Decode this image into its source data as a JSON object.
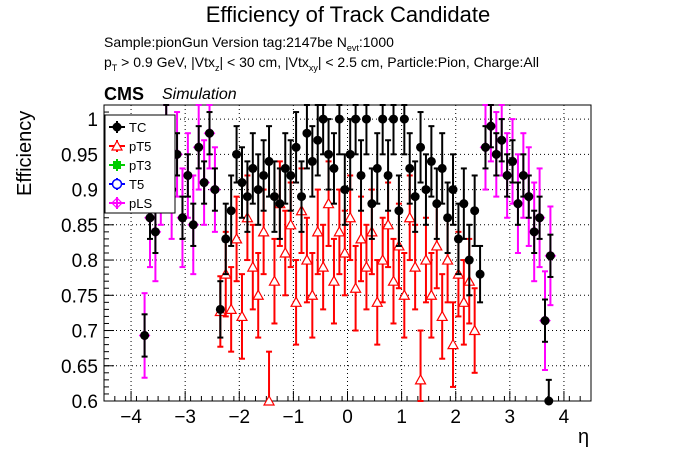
{
  "header": {
    "title": "Efficiency of Track Candidate",
    "sample_prefix": "Sample:pionGun   Version tag:2147be  N",
    "sample_sub": "evt",
    "sample_suffix": ":1000",
    "cuts_p": "p",
    "cuts_p_sub": "T",
    "cuts_1": " > 0.9 GeV, |Vtx",
    "cuts_z_sub": "z",
    "cuts_2": "| < 30 cm, |Vtx",
    "cuts_xy_sub": "xy",
    "cuts_3": "| < 2.5 cm, Particle:Pion, Charge:All",
    "cms": "CMS",
    "simulation": "Simulation"
  },
  "colors": {
    "TC": "#000000",
    "pT5": "#ff0000",
    "pT3": "#00cc00",
    "T5": "#0000ff",
    "pLS": "#ff00ff"
  },
  "chart_data": {
    "type": "scatter",
    "xlabel": "η",
    "ylabel": "Efficiency",
    "xlim": [
      -4.5,
      4.5
    ],
    "ylim": [
      0.6,
      1.02
    ],
    "xticks": [
      -4,
      -3,
      -2,
      -1,
      0,
      1,
      2,
      3,
      4
    ],
    "yticks": [
      0.6,
      0.65,
      0.7,
      0.75,
      0.8,
      0.85,
      0.9,
      0.95,
      1
    ],
    "grid": true,
    "legend_position": "top-left",
    "legend": [
      "TC",
      "pT5",
      "pT3",
      "T5",
      "pLS"
    ],
    "series": [
      {
        "name": "TC",
        "points": [
          [
            -3.75,
            0.693,
            0.03
          ],
          [
            -3.65,
            0.86,
            0.03
          ],
          [
            -3.55,
            0.84,
            0.03
          ],
          [
            -3.45,
            0.91,
            0.03
          ],
          [
            -3.35,
            1.0,
            0.03
          ],
          [
            -3.25,
            0.9,
            0.03
          ],
          [
            -3.15,
            0.95,
            0.03
          ],
          [
            -3.05,
            0.86,
            0.03
          ],
          [
            -2.95,
            0.92,
            0.03
          ],
          [
            -2.85,
            0.85,
            0.03
          ],
          [
            -2.75,
            0.96,
            0.03
          ],
          [
            -2.65,
            0.91,
            0.03
          ],
          [
            -2.55,
            0.98,
            0.03
          ],
          [
            -2.45,
            0.9,
            0.03
          ],
          [
            -2.35,
            0.73,
            0.04
          ],
          [
            -2.25,
            0.83,
            0.05
          ],
          [
            -2.15,
            0.87,
            0.05
          ],
          [
            -2.05,
            0.95,
            0.04
          ],
          [
            -1.95,
            0.91,
            0.05
          ],
          [
            -1.85,
            0.89,
            0.05
          ],
          [
            -1.75,
            0.93,
            0.05
          ],
          [
            -1.65,
            0.9,
            0.05
          ],
          [
            -1.55,
            0.92,
            0.05
          ],
          [
            -1.45,
            0.94,
            0.05
          ],
          [
            -1.35,
            0.89,
            0.05
          ],
          [
            -1.25,
            0.88,
            0.05
          ],
          [
            -1.15,
            0.93,
            0.05
          ],
          [
            -1.05,
            0.92,
            0.05
          ],
          [
            -0.95,
            0.96,
            0.05
          ],
          [
            -0.85,
            0.89,
            0.05
          ],
          [
            -0.75,
            0.98,
            0.05
          ],
          [
            -0.65,
            0.94,
            0.05
          ],
          [
            -0.55,
            0.97,
            0.05
          ],
          [
            -0.45,
            1.0,
            0.05
          ],
          [
            -0.35,
            0.95,
            0.05
          ],
          [
            -0.25,
            0.93,
            0.05
          ],
          [
            -0.15,
            1.0,
            0.05
          ],
          [
            -0.05,
            0.9,
            0.05
          ],
          [
            0.05,
            0.95,
            0.05
          ],
          [
            0.15,
            1.0,
            0.05
          ],
          [
            0.25,
            0.92,
            0.05
          ],
          [
            0.35,
            1.0,
            0.05
          ],
          [
            0.45,
            0.88,
            0.05
          ],
          [
            0.55,
            0.93,
            0.05
          ],
          [
            0.65,
            1.0,
            0.05
          ],
          [
            0.75,
            0.92,
            0.05
          ],
          [
            0.85,
            1.0,
            0.05
          ],
          [
            0.95,
            0.87,
            0.05
          ],
          [
            1.05,
            1.0,
            0.05
          ],
          [
            1.15,
            0.93,
            0.05
          ],
          [
            1.25,
            0.89,
            0.05
          ],
          [
            1.35,
            0.96,
            0.05
          ],
          [
            1.45,
            0.9,
            0.05
          ],
          [
            1.55,
            0.94,
            0.05
          ],
          [
            1.65,
            0.88,
            0.05
          ],
          [
            1.75,
            0.93,
            0.05
          ],
          [
            1.85,
            0.86,
            0.05
          ],
          [
            1.95,
            0.9,
            0.05
          ],
          [
            2.05,
            0.83,
            0.05
          ],
          [
            2.15,
            0.88,
            0.05
          ],
          [
            2.25,
            0.8,
            0.05
          ],
          [
            2.35,
            0.87,
            0.05
          ],
          [
            2.45,
            0.78,
            0.04
          ],
          [
            2.55,
            0.96,
            0.03
          ],
          [
            2.65,
            0.99,
            0.03
          ],
          [
            2.75,
            0.95,
            0.03
          ],
          [
            2.85,
            0.97,
            0.03
          ],
          [
            2.95,
            0.92,
            0.03
          ],
          [
            3.05,
            0.94,
            0.03
          ],
          [
            3.15,
            0.88,
            0.03
          ],
          [
            3.25,
            0.92,
            0.03
          ],
          [
            3.35,
            0.89,
            0.03
          ],
          [
            3.45,
            0.84,
            0.03
          ],
          [
            3.55,
            0.86,
            0.03
          ],
          [
            3.65,
            0.714,
            0.03
          ],
          [
            3.75,
            0.806,
            0.03
          ],
          [
            3.72,
            0.6,
            0.03
          ]
        ]
      },
      {
        "name": "pT5",
        "points": [
          [
            -2.35,
            0.727,
            0.05
          ],
          [
            -2.25,
            0.78,
            0.06
          ],
          [
            -2.15,
            0.73,
            0.06
          ],
          [
            -2.05,
            0.83,
            0.06
          ],
          [
            -1.95,
            0.72,
            0.06
          ],
          [
            -1.85,
            0.86,
            0.06
          ],
          [
            -1.75,
            0.79,
            0.06
          ],
          [
            -1.65,
            0.75,
            0.06
          ],
          [
            -1.55,
            0.84,
            0.06
          ],
          [
            -1.45,
            0.6,
            0.07
          ],
          [
            -1.35,
            0.77,
            0.06
          ],
          [
            -1.25,
            0.88,
            0.06
          ],
          [
            -1.15,
            0.81,
            0.06
          ],
          [
            -1.05,
            0.85,
            0.06
          ],
          [
            -0.95,
            0.74,
            0.06
          ],
          [
            -0.85,
            0.87,
            0.06
          ],
          [
            -0.75,
            0.8,
            0.06
          ],
          [
            -0.65,
            0.75,
            0.06
          ],
          [
            -0.55,
            0.84,
            0.06
          ],
          [
            -0.45,
            0.79,
            0.06
          ],
          [
            -0.35,
            0.88,
            0.06
          ],
          [
            -0.25,
            0.77,
            0.06
          ],
          [
            -0.15,
            0.84,
            0.06
          ],
          [
            -0.05,
            0.81,
            0.06
          ],
          [
            0.05,
            0.86,
            0.06
          ],
          [
            0.15,
            0.76,
            0.06
          ],
          [
            0.25,
            0.83,
            0.06
          ],
          [
            0.35,
            0.79,
            0.06
          ],
          [
            0.45,
            0.84,
            0.06
          ],
          [
            0.55,
            0.74,
            0.06
          ],
          [
            0.65,
            0.8,
            0.06
          ],
          [
            0.75,
            0.85,
            0.06
          ],
          [
            0.85,
            0.77,
            0.06
          ],
          [
            0.95,
            0.82,
            0.06
          ],
          [
            1.05,
            0.75,
            0.06
          ],
          [
            1.15,
            0.86,
            0.06
          ],
          [
            1.25,
            0.79,
            0.06
          ],
          [
            1.35,
            0.63,
            0.07
          ],
          [
            1.45,
            0.8,
            0.06
          ],
          [
            1.55,
            0.75,
            0.06
          ],
          [
            1.65,
            0.82,
            0.06
          ],
          [
            1.75,
            0.72,
            0.06
          ],
          [
            1.85,
            0.8,
            0.06
          ],
          [
            1.95,
            0.68,
            0.06
          ],
          [
            2.05,
            0.78,
            0.06
          ],
          [
            2.15,
            0.74,
            0.06
          ],
          [
            2.25,
            0.77,
            0.06
          ],
          [
            2.35,
            0.7,
            0.06
          ]
        ]
      },
      {
        "name": "pLS",
        "points": [
          [
            -3.75,
            0.693,
            0.06
          ],
          [
            -3.65,
            0.86,
            0.07
          ],
          [
            -3.55,
            0.84,
            0.07
          ],
          [
            -3.45,
            0.91,
            0.06
          ],
          [
            -3.35,
            1.0,
            0.06
          ],
          [
            -3.25,
            0.9,
            0.07
          ],
          [
            -3.15,
            0.95,
            0.06
          ],
          [
            -3.05,
            0.86,
            0.07
          ],
          [
            -2.95,
            0.92,
            0.06
          ],
          [
            -2.85,
            0.85,
            0.07
          ],
          [
            -2.75,
            0.96,
            0.06
          ],
          [
            -2.65,
            0.91,
            0.06
          ],
          [
            -2.55,
            0.98,
            0.05
          ],
          [
            -2.45,
            0.9,
            0.06
          ],
          [
            2.55,
            0.96,
            0.06
          ],
          [
            2.65,
            0.99,
            0.05
          ],
          [
            2.75,
            0.95,
            0.06
          ],
          [
            2.85,
            0.97,
            0.05
          ],
          [
            2.95,
            0.92,
            0.06
          ],
          [
            3.05,
            0.94,
            0.06
          ],
          [
            3.15,
            0.88,
            0.07
          ],
          [
            3.25,
            0.92,
            0.06
          ],
          [
            3.35,
            0.89,
            0.07
          ],
          [
            3.45,
            0.84,
            0.07
          ],
          [
            3.55,
            0.86,
            0.07
          ],
          [
            3.65,
            0.714,
            0.07
          ],
          [
            3.75,
            0.806,
            0.07
          ]
        ]
      }
    ]
  }
}
